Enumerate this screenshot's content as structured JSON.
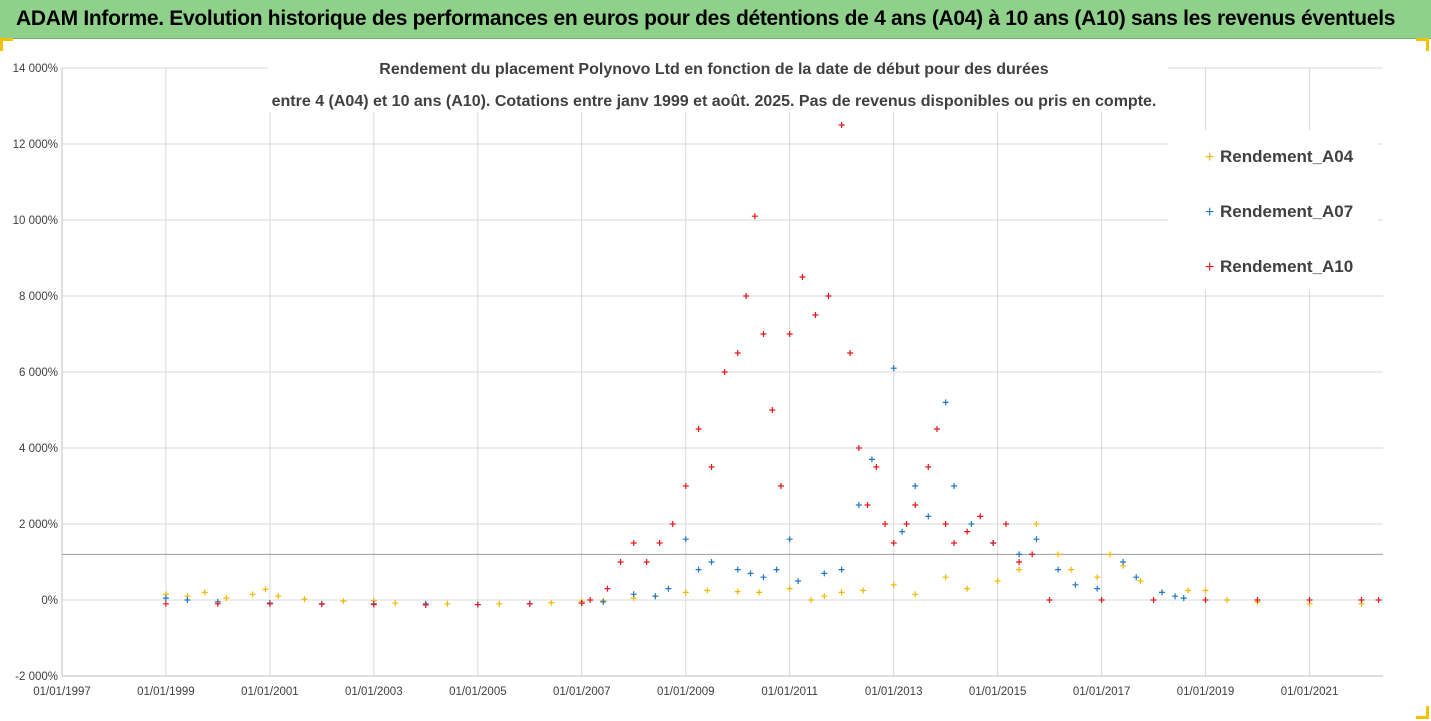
{
  "banner": {
    "title": "ADAM Informe. Evolution historique des performances en euros pour des détentions de 4 ans (A04) à 10 ans (A10) sans les revenus éventuels"
  },
  "colors": {
    "banner": "#8fd18b",
    "Rendement_A04": "#f5b800",
    "Rendement_A07": "#1f77c8",
    "Rendement_A10": "#e8161b",
    "grid": "#d9d9d9"
  },
  "chart_data": {
    "type": "scatter",
    "title_line1": "Rendement du placement Polynovo Ltd en fonction de la date de début pour des durées",
    "title_line2": "entre 4 (A04) et 10 ans (A10). Cotations entre janv 1999 et août. 2025. Pas de revenus disponibles ou pris en compte.",
    "xlabel": "",
    "ylabel": "",
    "xlim": [
      "1997-01-01",
      "2022-06-01"
    ],
    "ylim": [
      -2000,
      14000
    ],
    "grid": true,
    "legend_position": "top-right",
    "marker": "+",
    "y_ticks": [
      {
        "value": 14000,
        "label": "14 000%"
      },
      {
        "value": 12000,
        "label": "12 000%"
      },
      {
        "value": 10000,
        "label": "10 000%"
      },
      {
        "value": 8000,
        "label": "8 000%"
      },
      {
        "value": 6000,
        "label": "6 000%"
      },
      {
        "value": 4000,
        "label": "4 000%"
      },
      {
        "value": 2000,
        "label": "2 000%"
      },
      {
        "value": 0,
        "label": "0%"
      },
      {
        "value": -2000,
        "label": "-2 000%"
      }
    ],
    "x_ticks": [
      {
        "value": "1997-01-01",
        "label": "01/01/1997"
      },
      {
        "value": "1999-01-01",
        "label": "01/01/1999"
      },
      {
        "value": "2001-01-01",
        "label": "01/01/2001"
      },
      {
        "value": "2003-01-01",
        "label": "01/01/2003"
      },
      {
        "value": "2005-01-01",
        "label": "01/01/2005"
      },
      {
        "value": "2007-01-01",
        "label": "01/01/2007"
      },
      {
        "value": "2009-01-01",
        "label": "01/01/2009"
      },
      {
        "value": "2011-01-01",
        "label": "01/01/2011"
      },
      {
        "value": "2013-01-01",
        "label": "01/01/2013"
      },
      {
        "value": "2015-01-01",
        "label": "01/01/2015"
      },
      {
        "value": "2017-01-01",
        "label": "01/01/2017"
      },
      {
        "value": "2019-01-01",
        "label": "01/01/2019"
      },
      {
        "value": "2021-01-01",
        "label": "01/01/2021"
      }
    ],
    "reference_line": {
      "value": 1200
    },
    "series": [
      {
        "name": "Rendement_A04",
        "color": "#f5b800",
        "points": [
          {
            "x": "1999-01-01",
            "y": 150
          },
          {
            "x": "1999-06-01",
            "y": 100
          },
          {
            "x": "1999-10-01",
            "y": 200
          },
          {
            "x": "2000-03-01",
            "y": 50
          },
          {
            "x": "2000-09-01",
            "y": 150
          },
          {
            "x": "2000-12-01",
            "y": 280
          },
          {
            "x": "2001-03-01",
            "y": 100
          },
          {
            "x": "2001-09-01",
            "y": 20
          },
          {
            "x": "2002-06-01",
            "y": -30
          },
          {
            "x": "2003-01-01",
            "y": -20
          },
          {
            "x": "2003-06-01",
            "y": -80
          },
          {
            "x": "2004-06-01",
            "y": -100
          },
          {
            "x": "2005-06-01",
            "y": -100
          },
          {
            "x": "2006-06-01",
            "y": -70
          },
          {
            "x": "2007-01-01",
            "y": -40
          },
          {
            "x": "2007-06-01",
            "y": -20
          },
          {
            "x": "2008-01-01",
            "y": 50
          },
          {
            "x": "2008-06-01",
            "y": 100
          },
          {
            "x": "2009-01-01",
            "y": 200
          },
          {
            "x": "2009-06-01",
            "y": 250
          },
          {
            "x": "2010-01-01",
            "y": 220
          },
          {
            "x": "2010-06-01",
            "y": 200
          },
          {
            "x": "2011-01-01",
            "y": 300
          },
          {
            "x": "2011-06-01",
            "y": 0
          },
          {
            "x": "2011-09-01",
            "y": 100
          },
          {
            "x": "2012-01-01",
            "y": 200
          },
          {
            "x": "2012-06-01",
            "y": 250
          },
          {
            "x": "2013-01-01",
            "y": 400
          },
          {
            "x": "2013-06-01",
            "y": 150
          },
          {
            "x": "2014-01-01",
            "y": 600
          },
          {
            "x": "2014-06-01",
            "y": 300
          },
          {
            "x": "2015-01-01",
            "y": 500
          },
          {
            "x": "2015-06-01",
            "y": 800
          },
          {
            "x": "2015-10-01",
            "y": 2000
          },
          {
            "x": "2016-03-01",
            "y": 1200
          },
          {
            "x": "2016-06-01",
            "y": 800
          },
          {
            "x": "2016-12-01",
            "y": 600
          },
          {
            "x": "2017-03-01",
            "y": 1200
          },
          {
            "x": "2017-06-01",
            "y": 900
          },
          {
            "x": "2017-10-01",
            "y": 500
          },
          {
            "x": "2018-03-01",
            "y": 200
          },
          {
            "x": "2018-09-01",
            "y": 250
          },
          {
            "x": "2019-01-01",
            "y": 250
          },
          {
            "x": "2019-06-01",
            "y": 0
          },
          {
            "x": "2020-01-01",
            "y": -50
          },
          {
            "x": "2021-01-01",
            "y": -100
          },
          {
            "x": "2022-01-01",
            "y": -100
          }
        ]
      },
      {
        "name": "Rendement_A07",
        "color": "#1f77c8",
        "points": [
          {
            "x": "1999-01-01",
            "y": 50
          },
          {
            "x": "1999-06-01",
            "y": 0
          },
          {
            "x": "2000-01-01",
            "y": -50
          },
          {
            "x": "2001-01-01",
            "y": -80
          },
          {
            "x": "2002-01-01",
            "y": -100
          },
          {
            "x": "2003-01-01",
            "y": -100
          },
          {
            "x": "2004-01-01",
            "y": -100
          },
          {
            "x": "2005-01-01",
            "y": -120
          },
          {
            "x": "2006-01-01",
            "y": -100
          },
          {
            "x": "2007-01-01",
            "y": -80
          },
          {
            "x": "2007-06-01",
            "y": -50
          },
          {
            "x": "2008-01-01",
            "y": 150
          },
          {
            "x": "2008-06-01",
            "y": 100
          },
          {
            "x": "2008-09-01",
            "y": 300
          },
          {
            "x": "2009-01-01",
            "y": 1600
          },
          {
            "x": "2009-04-01",
            "y": 800
          },
          {
            "x": "2009-07-01",
            "y": 1000
          },
          {
            "x": "2010-01-01",
            "y": 800
          },
          {
            "x": "2010-04-01",
            "y": 700
          },
          {
            "x": "2010-07-01",
            "y": 600
          },
          {
            "x": "2010-10-01",
            "y": 800
          },
          {
            "x": "2011-01-01",
            "y": 1600
          },
          {
            "x": "2011-03-01",
            "y": 500
          },
          {
            "x": "2011-09-01",
            "y": 700
          },
          {
            "x": "2012-01-01",
            "y": 800
          },
          {
            "x": "2012-05-01",
            "y": 2500
          },
          {
            "x": "2012-08-01",
            "y": 3700
          },
          {
            "x": "2013-01-01",
            "y": 6100
          },
          {
            "x": "2013-03-01",
            "y": 1800
          },
          {
            "x": "2013-06-01",
            "y": 3000
          },
          {
            "x": "2013-09-01",
            "y": 2200
          },
          {
            "x": "2014-01-01",
            "y": 5200
          },
          {
            "x": "2014-03-01",
            "y": 3000
          },
          {
            "x": "2014-07-01",
            "y": 2000
          },
          {
            "x": "2014-12-01",
            "y": 1500
          },
          {
            "x": "2015-06-01",
            "y": 1200
          },
          {
            "x": "2015-10-01",
            "y": 1600
          },
          {
            "x": "2016-03-01",
            "y": 800
          },
          {
            "x": "2016-07-01",
            "y": 400
          },
          {
            "x": "2016-12-01",
            "y": 300
          },
          {
            "x": "2017-06-01",
            "y": 1000
          },
          {
            "x": "2017-09-01",
            "y": 600
          },
          {
            "x": "2018-03-01",
            "y": 200
          },
          {
            "x": "2018-06-01",
            "y": 100
          },
          {
            "x": "2018-08-01",
            "y": 50
          }
        ]
      },
      {
        "name": "Rendement_A10",
        "color": "#e8161b",
        "points": [
          {
            "x": "1999-01-01",
            "y": -100
          },
          {
            "x": "2000-01-01",
            "y": -100
          },
          {
            "x": "2001-01-01",
            "y": -100
          },
          {
            "x": "2002-01-01",
            "y": -110
          },
          {
            "x": "2003-01-01",
            "y": -120
          },
          {
            "x": "2004-01-01",
            "y": -130
          },
          {
            "x": "2005-01-01",
            "y": -120
          },
          {
            "x": "2006-01-01",
            "y": -100
          },
          {
            "x": "2007-01-01",
            "y": -80
          },
          {
            "x": "2007-03-01",
            "y": 0
          },
          {
            "x": "2007-07-01",
            "y": 300
          },
          {
            "x": "2007-10-01",
            "y": 1000
          },
          {
            "x": "2008-01-01",
            "y": 1500
          },
          {
            "x": "2008-04-01",
            "y": 1000
          },
          {
            "x": "2008-07-01",
            "y": 1500
          },
          {
            "x": "2008-10-01",
            "y": 2000
          },
          {
            "x": "2009-01-01",
            "y": 3000
          },
          {
            "x": "2009-04-01",
            "y": 4500
          },
          {
            "x": "2009-07-01",
            "y": 3500
          },
          {
            "x": "2009-10-01",
            "y": 6000
          },
          {
            "x": "2010-01-01",
            "y": 6500
          },
          {
            "x": "2010-03-01",
            "y": 8000
          },
          {
            "x": "2010-05-01",
            "y": 10100
          },
          {
            "x": "2010-07-01",
            "y": 7000
          },
          {
            "x": "2010-09-01",
            "y": 5000
          },
          {
            "x": "2010-11-01",
            "y": 3000
          },
          {
            "x": "2011-01-01",
            "y": 7000
          },
          {
            "x": "2011-04-01",
            "y": 8500
          },
          {
            "x": "2011-07-01",
            "y": 7500
          },
          {
            "x": "2011-10-01",
            "y": 8000
          },
          {
            "x": "2012-01-01",
            "y": 12500
          },
          {
            "x": "2012-03-01",
            "y": 6500
          },
          {
            "x": "2012-05-01",
            "y": 4000
          },
          {
            "x": "2012-07-01",
            "y": 2500
          },
          {
            "x": "2012-09-01",
            "y": 3500
          },
          {
            "x": "2012-11-01",
            "y": 2000
          },
          {
            "x": "2013-01-01",
            "y": 1500
          },
          {
            "x": "2013-04-01",
            "y": 2000
          },
          {
            "x": "2013-06-01",
            "y": 2500
          },
          {
            "x": "2013-09-01",
            "y": 3500
          },
          {
            "x": "2013-11-01",
            "y": 4500
          },
          {
            "x": "2014-01-01",
            "y": 2000
          },
          {
            "x": "2014-03-01",
            "y": 1500
          },
          {
            "x": "2014-06-01",
            "y": 1800
          },
          {
            "x": "2014-09-01",
            "y": 2200
          },
          {
            "x": "2014-12-01",
            "y": 1500
          },
          {
            "x": "2015-03-01",
            "y": 2000
          },
          {
            "x": "2015-06-01",
            "y": 1000
          },
          {
            "x": "2015-09-01",
            "y": 1200
          },
          {
            "x": "2016-01-01",
            "y": 0
          },
          {
            "x": "2017-01-01",
            "y": 0
          },
          {
            "x": "2018-01-01",
            "y": 0
          },
          {
            "x": "2019-01-01",
            "y": 0
          },
          {
            "x": "2020-01-01",
            "y": 0
          },
          {
            "x": "2021-01-01",
            "y": 0
          },
          {
            "x": "2022-01-01",
            "y": 0
          },
          {
            "x": "2022-05-01",
            "y": 0
          }
        ]
      }
    ]
  }
}
